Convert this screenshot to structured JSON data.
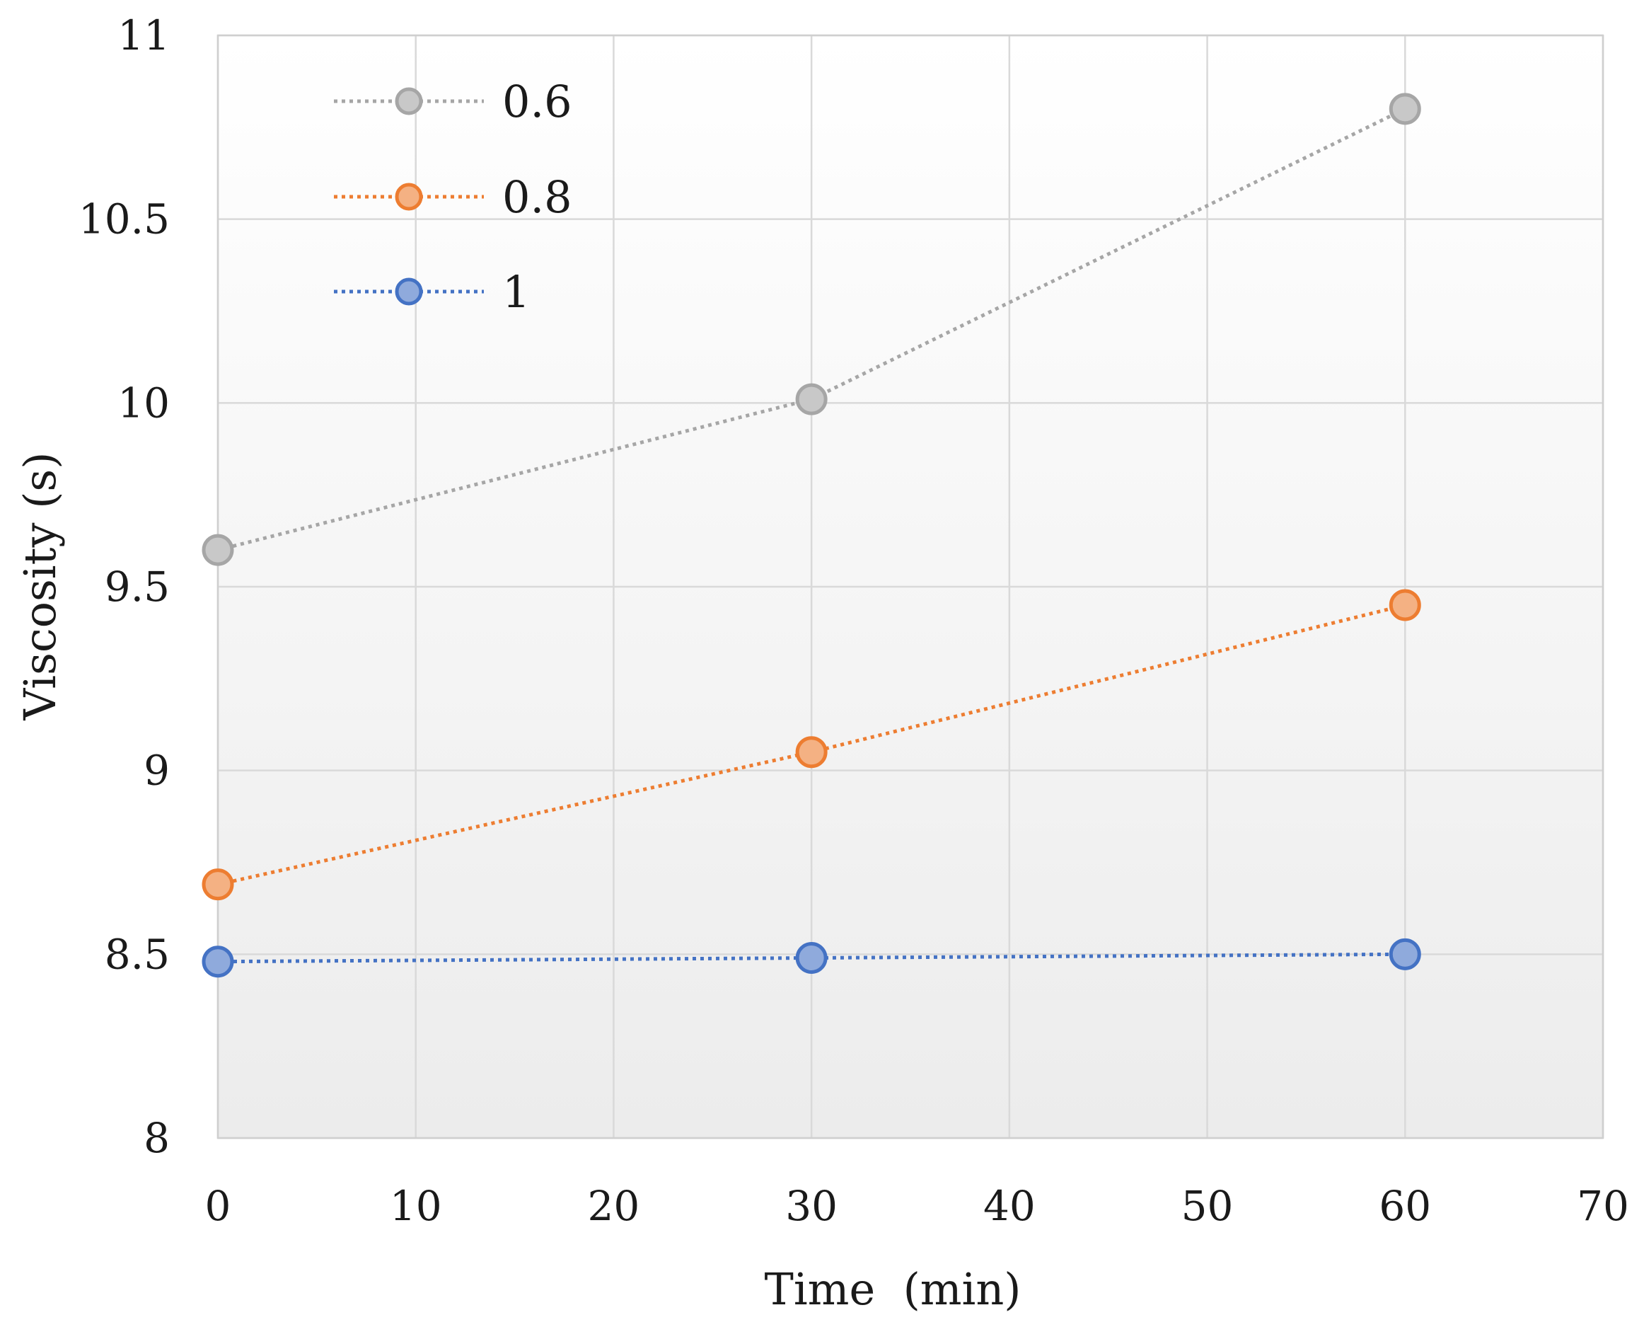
{
  "chart_data": {
    "type": "line",
    "title": "",
    "xlabel": "Time  (min)",
    "ylabel": "Viscosity (s)",
    "xlim": [
      0,
      70
    ],
    "ylim": [
      8,
      11
    ],
    "xticks": [
      0,
      10,
      20,
      30,
      40,
      50,
      60,
      70
    ],
    "yticks": [
      8,
      8.5,
      9,
      9.5,
      10,
      10.5,
      11
    ],
    "xtick_labels": [
      "0",
      "10",
      "20",
      "30",
      "40",
      "50",
      "60",
      "70"
    ],
    "ytick_labels": [
      "8",
      "8.5",
      "9",
      "9.5",
      "10",
      "10.5",
      "11"
    ],
    "grid": true,
    "legend_position": "top-left",
    "line_style": "dotted",
    "series": [
      {
        "name": "0.6",
        "color": "#a6a6a6",
        "fill": "#c8c8c8",
        "x": [
          0,
          30,
          60
        ],
        "y": [
          9.6,
          10.01,
          10.8
        ]
      },
      {
        "name": "0.8",
        "color": "#ed7d31",
        "fill": "#f4b183",
        "x": [
          0,
          30,
          60
        ],
        "y": [
          8.69,
          9.05,
          9.45
        ]
      },
      {
        "name": "1",
        "color": "#4472c4",
        "fill": "#8faadc",
        "x": [
          0,
          30,
          60
        ],
        "y": [
          8.48,
          8.49,
          8.5
        ]
      }
    ]
  }
}
